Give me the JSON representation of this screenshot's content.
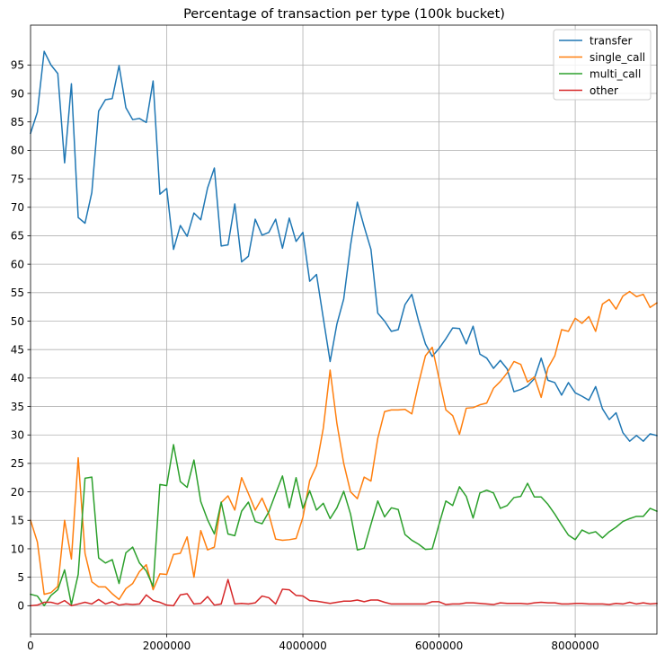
{
  "chart_data": {
    "type": "line",
    "title": "Percentage of transaction per type (100k bucket)",
    "xlabel": "",
    "ylabel": "",
    "xlim": [
      0,
      9200000
    ],
    "ylim": [
      -5,
      102
    ],
    "x_ticks": [
      0,
      2000000,
      4000000,
      6000000,
      8000000
    ],
    "x_tick_labels": [
      "0",
      "2000000",
      "4000000",
      "6000000",
      "8000000"
    ],
    "y_ticks": [
      0,
      5,
      10,
      15,
      20,
      25,
      30,
      35,
      40,
      45,
      50,
      55,
      60,
      65,
      70,
      75,
      80,
      85,
      90,
      95
    ],
    "y_tick_labels": [
      "0",
      "5",
      "10",
      "15",
      "20",
      "25",
      "30",
      "35",
      "40",
      "45",
      "50",
      "55",
      "60",
      "65",
      "70",
      "75",
      "80",
      "85",
      "90",
      "95"
    ],
    "grid": true,
    "legend_position": "top-right",
    "x": [
      0,
      100000,
      200000,
      300000,
      400000,
      500000,
      600000,
      700000,
      800000,
      900000,
      1000000,
      1100000,
      1200000,
      1300000,
      1400000,
      1500000,
      1600000,
      1700000,
      1800000,
      1900000,
      2000000,
      2100000,
      2200000,
      2300000,
      2400000,
      2500000,
      2600000,
      2700000,
      2800000,
      2900000,
      3000000,
      3100000,
      3200000,
      3300000,
      3400000,
      3500000,
      3600000,
      3700000,
      3800000,
      3900000,
      4000000,
      4100000,
      4200000,
      4300000,
      4400000,
      4500000,
      4600000,
      4700000,
      4800000,
      4900000,
      5000000,
      5100000,
      5200000,
      5300000,
      5400000,
      5500000,
      5600000,
      5700000,
      5800000,
      5900000,
      6000000,
      6100000,
      6200000,
      6300000,
      6400000,
      6500000,
      6600000,
      6700000,
      6800000,
      6900000,
      7000000,
      7100000,
      7200000,
      7300000,
      7400000,
      7500000,
      7600000,
      7700000,
      7800000,
      7900000,
      8000000,
      8100000,
      8200000,
      8300000,
      8400000,
      8500000,
      8600000,
      8700000,
      8800000,
      8900000,
      9000000,
      9100000,
      9200000
    ],
    "series": [
      {
        "name": "transfer",
        "color": "#1f77b4",
        "values": [
          83.0,
          86.7,
          97.4,
          95.0,
          93.5,
          77.8,
          91.7,
          68.2,
          67.2,
          72.6,
          86.9,
          88.9,
          89.1,
          94.9,
          87.5,
          85.4,
          85.6,
          84.9,
          92.2,
          72.3,
          73.3,
          62.6,
          66.8,
          64.9,
          69.0,
          67.8,
          73.4,
          76.9,
          63.2,
          63.4,
          70.6,
          60.4,
          61.4,
          67.9,
          65.1,
          65.6,
          67.9,
          62.8,
          68.1,
          64.0,
          65.6,
          57.0,
          58.2,
          50.5,
          42.9,
          49.5,
          53.9,
          63.3,
          70.9,
          66.6,
          62.6,
          51.4,
          50.0,
          48.2,
          48.5,
          52.9,
          54.7,
          50.0,
          46.0,
          43.8,
          45.2,
          46.9,
          48.8,
          48.7,
          46.0,
          49.1,
          44.2,
          43.5,
          41.7,
          43.1,
          41.6,
          37.6,
          38.0,
          38.6,
          39.9,
          43.5,
          39.6,
          39.2,
          37.0,
          39.2,
          37.4,
          36.8,
          36.1,
          38.5,
          34.6,
          32.7,
          33.9,
          30.4,
          28.9,
          29.9,
          28.9,
          30.2,
          29.9
        ]
      },
      {
        "name": "single_call",
        "color": "#ff7f0e",
        "values": [
          15.0,
          11.2,
          2.0,
          2.3,
          3.4,
          15.0,
          8.2,
          26.0,
          9.2,
          4.2,
          3.3,
          3.3,
          2.1,
          1.1,
          3.0,
          3.9,
          6.0,
          7.2,
          2.8,
          5.6,
          5.5,
          9.0,
          9.2,
          12.1,
          5.0,
          13.2,
          9.8,
          10.3,
          18.1,
          19.3,
          16.8,
          22.5,
          19.7,
          16.8,
          18.9,
          16.1,
          11.7,
          11.5,
          11.6,
          11.8,
          15.5,
          22.0,
          24.6,
          31.2,
          41.4,
          32.0,
          25.0,
          20.0,
          18.8,
          22.6,
          21.9,
          29.4,
          34.1,
          34.4,
          34.4,
          34.5,
          33.7,
          39.1,
          43.9,
          45.4,
          39.9,
          34.4,
          33.4,
          30.1,
          34.7,
          34.8,
          35.3,
          35.6,
          38.2,
          39.4,
          40.9,
          42.9,
          42.4,
          39.3,
          40.2,
          36.6,
          41.8,
          43.9,
          48.5,
          48.2,
          50.5,
          49.6,
          50.8,
          48.2,
          53.0,
          53.8,
          52.1,
          54.4,
          55.2,
          54.3,
          54.7,
          52.4,
          53.2
        ]
      },
      {
        "name": "multi_call",
        "color": "#2ca02c",
        "values": [
          2.0,
          1.7,
          0.0,
          1.8,
          2.8,
          6.3,
          0.2,
          5.5,
          22.4,
          22.6,
          8.4,
          7.5,
          8.1,
          3.9,
          9.3,
          10.3,
          7.5,
          6.1,
          3.4,
          21.3,
          21.1,
          28.3,
          21.8,
          20.8,
          25.6,
          18.3,
          15.1,
          12.6,
          18.2,
          12.6,
          12.3,
          16.6,
          18.2,
          14.8,
          14.4,
          16.5,
          19.7,
          22.8,
          17.2,
          22.5,
          17.1,
          20.2,
          16.8,
          18.0,
          15.3,
          17.2,
          20.1,
          16.1,
          9.8,
          10.1,
          14.3,
          18.4,
          15.6,
          17.2,
          16.9,
          12.5,
          11.5,
          10.8,
          9.9,
          10.0,
          14.3,
          18.4,
          17.6,
          20.9,
          19.2,
          15.4,
          19.8,
          20.3,
          19.8,
          17.1,
          17.6,
          19.0,
          19.2,
          21.5,
          19.1,
          19.1,
          17.8,
          16.1,
          14.2,
          12.4,
          11.6,
          13.3,
          12.7,
          13.0,
          11.9,
          13.0,
          13.8,
          14.8,
          15.3,
          15.7,
          15.7,
          17.1,
          16.6
        ]
      },
      {
        "name": "other",
        "color": "#d62728",
        "values": [
          0.0,
          0.1,
          0.6,
          0.6,
          0.3,
          0.9,
          0.0,
          0.3,
          0.6,
          0.3,
          1.1,
          0.3,
          0.7,
          0.1,
          0.3,
          0.2,
          0.3,
          1.9,
          0.9,
          0.6,
          0.1,
          0.0,
          1.9,
          2.1,
          0.3,
          0.4,
          1.6,
          0.1,
          0.3,
          4.6,
          0.3,
          0.4,
          0.3,
          0.5,
          1.7,
          1.4,
          0.3,
          2.9,
          2.8,
          1.8,
          1.7,
          0.9,
          0.8,
          0.6,
          0.4,
          0.6,
          0.8,
          0.8,
          1.0,
          0.7,
          1.0,
          1.0,
          0.6,
          0.3,
          0.3,
          0.3,
          0.3,
          0.3,
          0.3,
          0.7,
          0.7,
          0.2,
          0.3,
          0.3,
          0.5,
          0.5,
          0.4,
          0.3,
          0.2,
          0.5,
          0.4,
          0.4,
          0.4,
          0.3,
          0.5,
          0.6,
          0.5,
          0.5,
          0.3,
          0.3,
          0.4,
          0.4,
          0.3,
          0.3,
          0.3,
          0.2,
          0.4,
          0.3,
          0.6,
          0.3,
          0.5,
          0.3,
          0.4
        ]
      }
    ]
  }
}
